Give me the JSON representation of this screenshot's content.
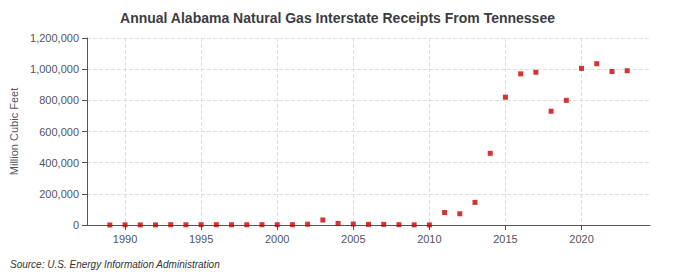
{
  "chart_data": {
    "type": "scatter",
    "title": "Annual Alabama Natural Gas Interstate Receipts From Tennessee",
    "ylabel": "Million Cubic Feet",
    "source": "Source: U.S. Energy Information Administration",
    "x": [
      1989,
      1990,
      1991,
      1992,
      1993,
      1994,
      1995,
      1996,
      1997,
      1998,
      1999,
      2000,
      2001,
      2002,
      2003,
      2004,
      2005,
      2006,
      2007,
      2008,
      2009,
      2010,
      2011,
      2012,
      2013,
      2014,
      2015,
      2016,
      2017,
      2018,
      2019,
      2020,
      2021,
      2022,
      2023
    ],
    "values": [
      0,
      1000,
      500,
      500,
      2000,
      1500,
      2000,
      2000,
      1500,
      1500,
      2000,
      2000,
      2000,
      5000,
      32000,
      10000,
      6000,
      4000,
      4000,
      2000,
      1000,
      500,
      80000,
      72000,
      145000,
      460000,
      820000,
      970000,
      980000,
      730000,
      800000,
      1005000,
      1035000,
      985000,
      990000
    ],
    "color": "#cc0000",
    "marker": "square",
    "xlim": [
      1987.5,
      2024.5
    ],
    "xticks": [
      1990,
      1995,
      2000,
      2005,
      2010,
      2015,
      2020
    ],
    "ylim": [
      0,
      1200000
    ],
    "yticks": [
      0,
      {
        "value": 200000,
        "label": "200,000"
      },
      {
        "value": 400000,
        "label": "400,000"
      },
      {
        "value": 600000,
        "label": "600,000"
      },
      {
        "value": 800000,
        "label": "800,000"
      },
      {
        "value": 1000000,
        "label": "1,000,000"
      },
      {
        "value": 1200000,
        "label": "1,200,000"
      }
    ],
    "grid": true
  }
}
